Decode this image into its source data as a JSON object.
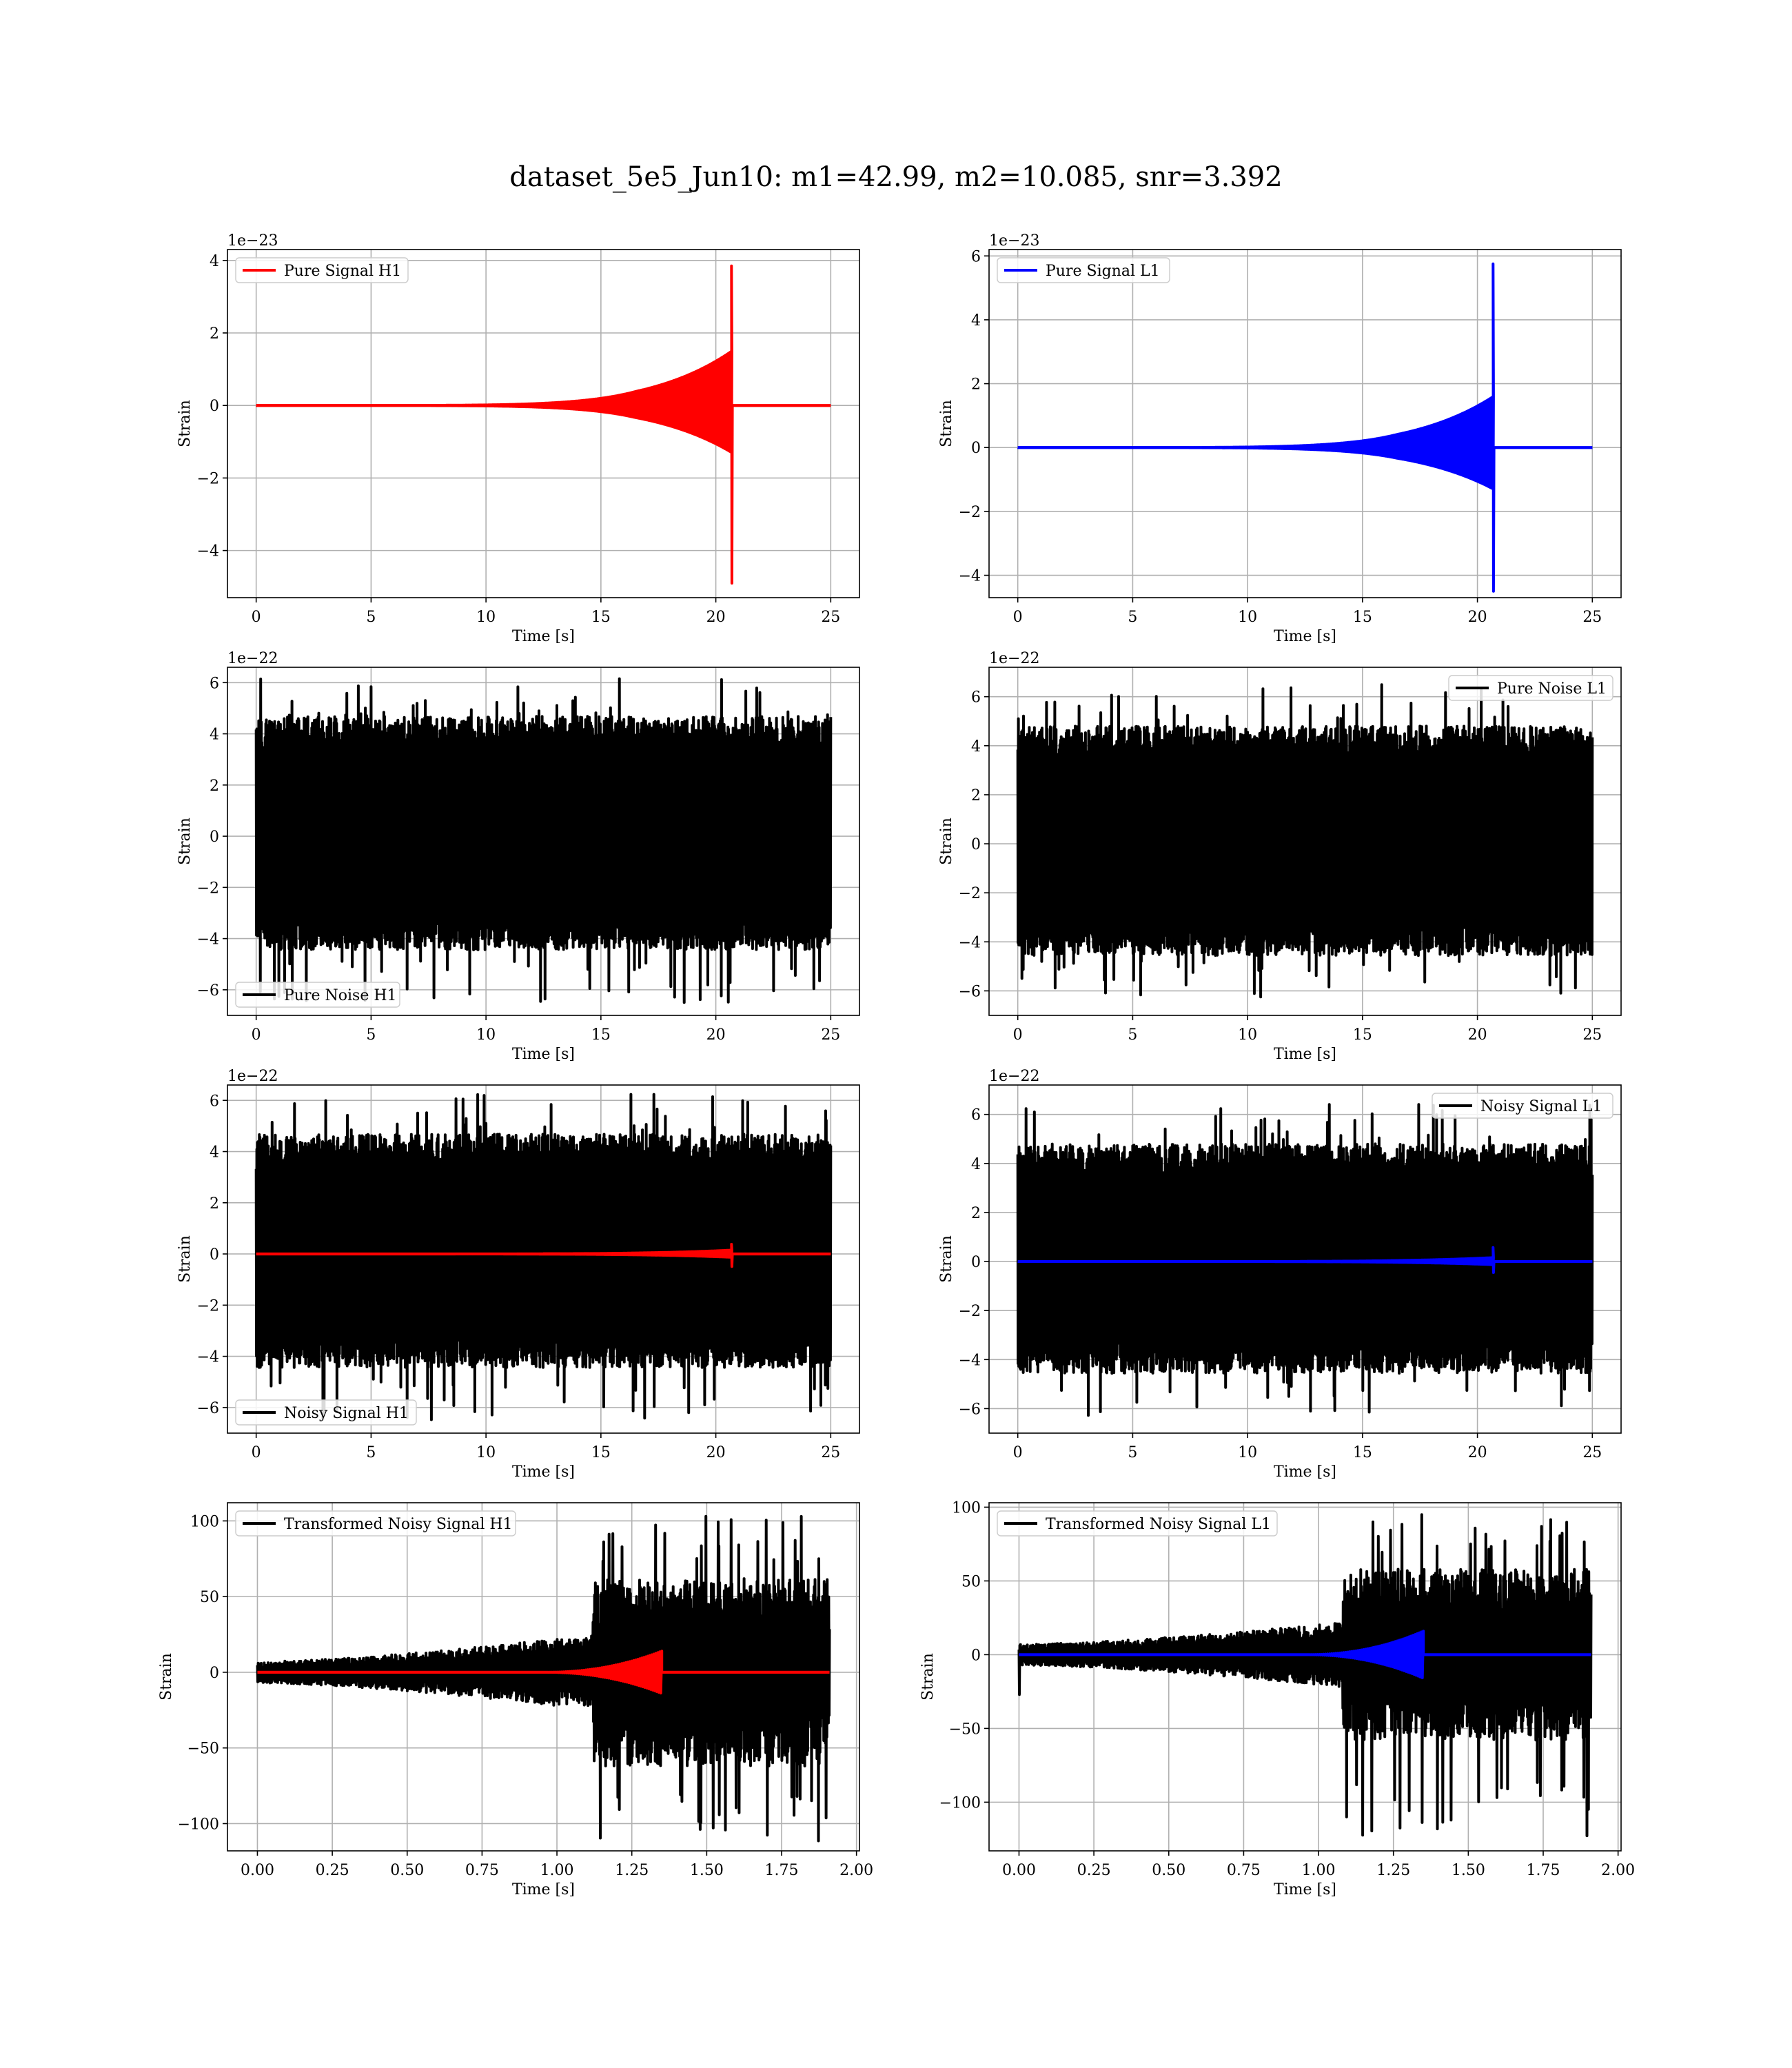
{
  "figure_title": "dataset_5e5_Jun10: m1=42.99, m2=10.085, snr=3.392",
  "colors": {
    "h1_signal": "#ff0000",
    "l1_signal": "#0000ff",
    "noise": "#000000",
    "grid": "#b0b0b0"
  },
  "chart_data": [
    {
      "id": "pure-signal-h1",
      "type": "line",
      "row": 0,
      "col": 0,
      "xlabel": "Time [s]",
      "ylabel": "Strain",
      "multiplier": "1e−23",
      "xlim": [
        -1.25,
        26.25
      ],
      "ylim": [
        -5.3,
        4.3
      ],
      "xticks": [
        0,
        5,
        10,
        15,
        20,
        25
      ],
      "xticklabels": [
        "0",
        "5",
        "10",
        "15",
        "20",
        "25"
      ],
      "yticks": [
        -4,
        -2,
        0,
        2,
        4
      ],
      "yticklabels": [
        "−4",
        "−2",
        "0",
        "2",
        "4"
      ],
      "legend": {
        "position": "upper left"
      },
      "series": [
        {
          "name": "Pure Signal H1",
          "color": "#ff0000",
          "kind": "chirp",
          "chirp": {
            "t0": 0,
            "tc": 20.7,
            "tend": 25,
            "peak_pos": 3.85,
            "peak_neg": -4.9,
            "env_pre_pos": 1.5,
            "env_pre_neg": -1.3
          }
        }
      ]
    },
    {
      "id": "pure-signal-l1",
      "type": "line",
      "row": 0,
      "col": 1,
      "xlabel": "Time [s]",
      "ylabel": "Strain",
      "multiplier": "1e−23",
      "xlim": [
        -1.25,
        26.25
      ],
      "ylim": [
        -4.7,
        6.2
      ],
      "xticks": [
        0,
        5,
        10,
        15,
        20,
        25
      ],
      "xticklabels": [
        "0",
        "5",
        "10",
        "15",
        "20",
        "25"
      ],
      "yticks": [
        -4,
        -2,
        0,
        2,
        4,
        6
      ],
      "yticklabels": [
        "−4",
        "−2",
        "0",
        "2",
        "4",
        "6"
      ],
      "legend": {
        "position": "upper left"
      },
      "series": [
        {
          "name": "Pure Signal L1",
          "color": "#0000ff",
          "kind": "chirp",
          "chirp": {
            "t0": 0,
            "tc": 20.7,
            "tend": 25,
            "peak_pos": 5.75,
            "peak_neg": -4.5,
            "env_pre_pos": 1.6,
            "env_pre_neg": -1.3
          }
        }
      ]
    },
    {
      "id": "pure-noise-h1",
      "type": "line",
      "row": 1,
      "col": 0,
      "xlabel": "Time [s]",
      "ylabel": "Strain",
      "multiplier": "1e−22",
      "xlim": [
        -1.25,
        26.25
      ],
      "ylim": [
        -7.0,
        6.6
      ],
      "xticks": [
        0,
        5,
        10,
        15,
        20,
        25
      ],
      "xticklabels": [
        "0",
        "5",
        "10",
        "15",
        "20",
        "25"
      ],
      "yticks": [
        -6,
        -4,
        -2,
        0,
        2,
        4,
        6
      ],
      "yticklabels": [
        "−6",
        "−4",
        "−2",
        "0",
        "2",
        "4",
        "6"
      ],
      "legend": {
        "position": "lower left"
      },
      "series": [
        {
          "name": "Pure Noise H1",
          "color": "#000000",
          "kind": "noise",
          "noise": {
            "t0": 0,
            "t1": 25,
            "band_pos": 3.9,
            "band_neg": -3.7,
            "max": 6.25,
            "min": -6.5
          }
        }
      ]
    },
    {
      "id": "pure-noise-l1",
      "type": "line",
      "row": 1,
      "col": 1,
      "xlabel": "Time [s]",
      "ylabel": "Strain",
      "multiplier": "1e−22",
      "xlim": [
        -1.25,
        26.25
      ],
      "ylim": [
        -7.0,
        7.2
      ],
      "xticks": [
        0,
        5,
        10,
        15,
        20,
        25
      ],
      "xticklabels": [
        "0",
        "5",
        "10",
        "15",
        "20",
        "25"
      ],
      "yticks": [
        -6,
        -4,
        -2,
        0,
        2,
        4,
        6
      ],
      "yticklabels": [
        "−6",
        "−4",
        "−2",
        "0",
        "2",
        "4",
        "6"
      ],
      "legend": {
        "position": "upper right"
      },
      "series": [
        {
          "name": "Pure Noise L1",
          "color": "#000000",
          "kind": "noise",
          "noise": {
            "t0": 0,
            "t1": 25,
            "band_pos": 4.0,
            "band_neg": -3.8,
            "max": 6.5,
            "min": -6.3
          }
        }
      ]
    },
    {
      "id": "noisy-signal-h1",
      "type": "line",
      "row": 2,
      "col": 0,
      "xlabel": "Time [s]",
      "ylabel": "Strain",
      "multiplier": "1e−22",
      "xlim": [
        -1.25,
        26.25
      ],
      "ylim": [
        -7.0,
        6.6
      ],
      "xticks": [
        0,
        5,
        10,
        15,
        20,
        25
      ],
      "xticklabels": [
        "0",
        "5",
        "10",
        "15",
        "20",
        "25"
      ],
      "yticks": [
        -6,
        -4,
        -2,
        0,
        2,
        4,
        6
      ],
      "yticklabels": [
        "−6",
        "−4",
        "−2",
        "0",
        "2",
        "4",
        "6"
      ],
      "legend": {
        "position": "lower left"
      },
      "series": [
        {
          "name": "Noisy Signal H1",
          "color": "#000000",
          "kind": "noise",
          "noise": {
            "t0": 0,
            "t1": 25,
            "band_pos": 3.9,
            "band_neg": -3.7,
            "max": 6.25,
            "min": -6.5
          }
        },
        {
          "color": "#ff0000",
          "kind": "chirp",
          "chirp": {
            "t0": 0,
            "tc": 20.7,
            "tend": 25,
            "peak_pos": 0.38,
            "peak_neg": -0.49,
            "env_pre_pos": 0.15,
            "env_pre_neg": -0.13
          }
        }
      ]
    },
    {
      "id": "noisy-signal-l1",
      "type": "line",
      "row": 2,
      "col": 1,
      "xlabel": "Time [s]",
      "ylabel": "Strain",
      "multiplier": "1e−22",
      "xlim": [
        -1.25,
        26.25
      ],
      "ylim": [
        -7.0,
        7.2
      ],
      "xticks": [
        0,
        5,
        10,
        15,
        20,
        25
      ],
      "xticklabels": [
        "0",
        "5",
        "10",
        "15",
        "20",
        "25"
      ],
      "yticks": [
        -6,
        -4,
        -2,
        0,
        2,
        4,
        6
      ],
      "yticklabels": [
        "−6",
        "−4",
        "−2",
        "0",
        "2",
        "4",
        "6"
      ],
      "legend": {
        "position": "upper right"
      },
      "series": [
        {
          "name": "Noisy Signal L1",
          "color": "#000000",
          "kind": "noise",
          "noise": {
            "t0": 0,
            "t1": 25,
            "band_pos": 4.0,
            "band_neg": -3.8,
            "max": 6.5,
            "min": -6.3
          }
        },
        {
          "color": "#0000ff",
          "kind": "chirp",
          "chirp": {
            "t0": 0,
            "tc": 20.7,
            "tend": 25,
            "peak_pos": 0.57,
            "peak_neg": -0.45,
            "env_pre_pos": 0.16,
            "env_pre_neg": -0.13
          }
        }
      ]
    },
    {
      "id": "transformed-noisy-signal-h1",
      "type": "line",
      "row": 3,
      "col": 0,
      "xlabel": "Time [s]",
      "ylabel": "Strain",
      "multiplier": "",
      "xlim": [
        -0.1,
        2.01
      ],
      "ylim": [
        -118,
        112
      ],
      "xticks": [
        0,
        0.25,
        0.5,
        0.75,
        1.0,
        1.25,
        1.5,
        1.75,
        2.0
      ],
      "xticklabels": [
        "0.00",
        "0.25",
        "0.50",
        "0.75",
        "1.00",
        "1.25",
        "1.50",
        "1.75",
        "2.00"
      ],
      "yticks": [
        -100,
        -50,
        0,
        50,
        100
      ],
      "yticklabels": [
        "−100",
        "−50",
        "0",
        "50",
        "100"
      ],
      "legend": {
        "position": "upper left"
      },
      "series": [
        {
          "name": "Transformed Noisy Signal H1",
          "color": "#000000",
          "kind": "whitened",
          "whitened": {
            "t0": 0,
            "t1": 1.91,
            "tjump": 1.12,
            "pre_start": 7,
            "pre_end": 25,
            "post": 62,
            "max": 103,
            "min": -114
          }
        },
        {
          "color": "#ff0000",
          "kind": "whitened-chirp",
          "wchirp": {
            "t0": 0,
            "t1": 1.91,
            "tstart": 0.95,
            "tc": 1.35,
            "peak": 14
          }
        }
      ]
    },
    {
      "id": "transformed-noisy-signal-l1",
      "type": "line",
      "row": 3,
      "col": 1,
      "xlabel": "Time [s]",
      "ylabel": "Strain",
      "multiplier": "",
      "xlim": [
        -0.1,
        2.01
      ],
      "ylim": [
        -133,
        103
      ],
      "xticks": [
        0,
        0.25,
        0.5,
        0.75,
        1.0,
        1.25,
        1.5,
        1.75,
        2.0
      ],
      "xticklabels": [
        "0.00",
        "0.25",
        "0.50",
        "0.75",
        "1.00",
        "1.25",
        "1.50",
        "1.75",
        "2.00"
      ],
      "yticks": [
        -100,
        -50,
        0,
        50,
        100
      ],
      "yticklabels": [
        "−100",
        "−50",
        "0",
        "50",
        "100"
      ],
      "legend": {
        "position": "upper left"
      },
      "series": [
        {
          "name": "Transformed Noisy Signal L1",
          "color": "#000000",
          "kind": "whitened",
          "whitened": {
            "t0": 0,
            "t1": 1.91,
            "tjump": 1.08,
            "pre_start": 7,
            "pre_end": 22,
            "post": 58,
            "max": 95,
            "min": -123,
            "spike_start": 27
          }
        },
        {
          "color": "#0000ff",
          "kind": "whitened-chirp",
          "wchirp": {
            "t0": 0,
            "t1": 1.91,
            "tstart": 0.95,
            "tc": 1.35,
            "peak": 16
          }
        }
      ]
    }
  ]
}
